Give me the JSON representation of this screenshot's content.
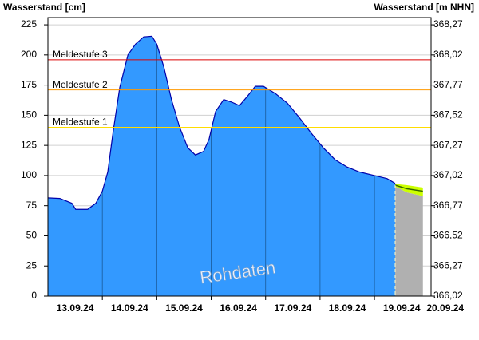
{
  "chart_data": {
    "type": "area",
    "y_label": "Wasserstand [cm]",
    "y2_label": "Wasserstand [m NHN]",
    "annotation": "Rohdaten",
    "color": "#3399ff",
    "line_color": "#0000aa",
    "x": [
      0,
      0.22,
      0.44,
      0.51,
      0.73,
      0.88,
      1.0,
      1.1,
      1.2,
      1.32,
      1.47,
      1.61,
      1.76,
      1.91,
      2.0,
      2.13,
      2.27,
      2.42,
      2.57,
      2.71,
      2.86,
      2.96,
      3.08,
      3.23,
      3.37,
      3.52,
      3.67,
      3.81,
      3.96,
      4.18,
      4.4,
      4.62,
      4.84,
      5.06,
      5.28,
      5.5,
      5.72,
      6.0,
      6.23,
      6.38
    ],
    "values": [
      81.5,
      81,
      77,
      72,
      72,
      77,
      87,
      103,
      137,
      173,
      200,
      209,
      215,
      215.5,
      209,
      190,
      163,
      140,
      123,
      117,
      120,
      130,
      153,
      163,
      161,
      158,
      166,
      174,
      174,
      168,
      160,
      148,
      135,
      123,
      113,
      107,
      103,
      100,
      97.5,
      93.5
    ],
    "forecast": {
      "x": [
        6.38,
        6.6,
        6.89
      ],
      "values": [
        92,
        89,
        87
      ],
      "low": [
        91,
        86,
        83
      ],
      "high": [
        93,
        92,
        90
      ],
      "color": "#ccff00",
      "line_color": "#336600",
      "base_color": "#b0b0b0"
    },
    "thresholds": [
      {
        "label": "Meldestufe 3",
        "value": 196,
        "color": "#dd0000"
      },
      {
        "label": "Meldestufe 2",
        "value": 171,
        "color": "#ff9900"
      },
      {
        "label": "Meldestufe 1",
        "value": 140,
        "color": "#ffdd00"
      }
    ],
    "xlim": [
      0,
      7.04
    ],
    "day_lines": [
      1,
      2,
      3,
      4,
      5,
      6
    ],
    "xticks": [
      {
        "value": 0.5,
        "label": "13.09.24"
      },
      {
        "value": 1.5,
        "label": "14.09.24"
      },
      {
        "value": 2.5,
        "label": "15.09.24"
      },
      {
        "value": 3.5,
        "label": "16.09.24"
      },
      {
        "value": 4.5,
        "label": "17.09.24"
      },
      {
        "value": 5.5,
        "label": "18.09.24"
      },
      {
        "value": 6.5,
        "label": "19.09.24"
      },
      {
        "value": 7.3,
        "label": "20.09.24"
      }
    ],
    "ylim": [
      0,
      231
    ],
    "yticks": [
      0,
      25,
      50,
      75,
      100,
      125,
      150,
      175,
      200,
      225
    ],
    "y2lim": [
      366.02,
      368.33
    ],
    "y2ticks": [
      {
        "value": 366.02,
        "label": "366,02"
      },
      {
        "value": 366.27,
        "label": "366,27"
      },
      {
        "value": 366.52,
        "label": "366,52"
      },
      {
        "value": 366.77,
        "label": "366,77"
      },
      {
        "value": 367.02,
        "label": "367,02"
      },
      {
        "value": 367.27,
        "label": "367,27"
      },
      {
        "value": 367.52,
        "label": "367,52"
      },
      {
        "value": 367.77,
        "label": "367,77"
      },
      {
        "value": 368.02,
        "label": "368,02"
      },
      {
        "value": 368.27,
        "label": "368,27"
      }
    ],
    "grid": true
  }
}
